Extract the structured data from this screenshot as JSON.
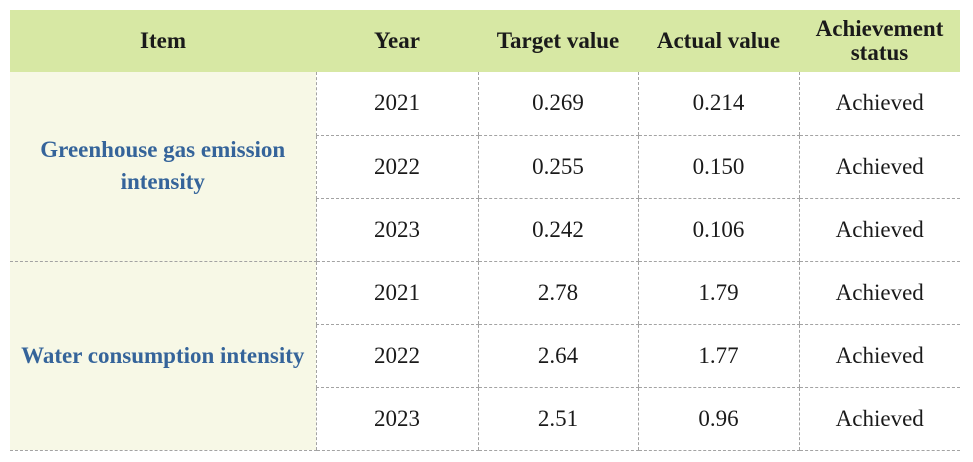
{
  "table": {
    "headers": {
      "item": "Item",
      "year": "Year",
      "target": "Target value",
      "actual": "Actual value",
      "status": "Achievement status"
    },
    "groups": [
      {
        "item": "Greenhouse gas emission intensity",
        "rows": [
          {
            "year": "2021",
            "target": "0.269",
            "actual": "0.214",
            "status": "Achieved"
          },
          {
            "year": "2022",
            "target": "0.255",
            "actual": "0.150",
            "status": "Achieved"
          },
          {
            "year": "2023",
            "target": "0.242",
            "actual": "0.106",
            "status": "Achieved"
          }
        ]
      },
      {
        "item": "Water consumption intensity",
        "rows": [
          {
            "year": "2021",
            "target": "2.78",
            "actual": "1.79",
            "status": "Achieved"
          },
          {
            "year": "2022",
            "target": "2.64",
            "actual": "1.77",
            "status": "Achieved"
          },
          {
            "year": "2023",
            "target": "2.51",
            "actual": "0.96",
            "status": "Achieved"
          }
        ]
      }
    ]
  },
  "colors": {
    "header_bg": "#d7e8a4",
    "item_bg": "#f7f8e6",
    "item_text": "#35649a"
  }
}
